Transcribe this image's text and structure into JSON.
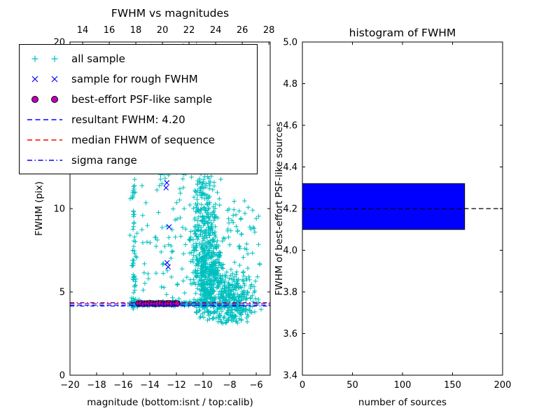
{
  "figure": {
    "background": "#ffffff",
    "text_color": "#000000"
  },
  "chart_data": [
    {
      "type": "scatter",
      "title": "FWHM vs magnitudes",
      "xlabel": "magnitude (bottom:isnt / top:calib)",
      "ylabel": "FWHM (pix)",
      "xlim": [
        -20,
        -4.95
      ],
      "ylim": [
        0,
        20
      ],
      "xticks": [
        -20,
        -18,
        -16,
        -14,
        -12,
        -10,
        -8,
        -6
      ],
      "yticks": [
        0,
        5,
        10,
        15,
        20
      ],
      "top_axis": {
        "lim": [
          13.05,
          28.1
        ],
        "ticks": [
          14,
          16,
          18,
          20,
          22,
          24,
          26,
          28
        ]
      },
      "grid": false,
      "legend_position": "upper-left",
      "legend": [
        {
          "label": "all sample",
          "marker": "plus-pair",
          "color": "#00BFBF"
        },
        {
          "label": "sample for rough FWHM",
          "marker": "x-pair",
          "color": "#0000FF"
        },
        {
          "label": "best-effort PSF-like sample",
          "marker": "circle-pair",
          "color": "#BF00BF",
          "edge": "#000000"
        },
        {
          "label": "resultant FWHM: 4.20",
          "marker": "dashed-line",
          "color": "#0000FF"
        },
        {
          "label": "median FHWM of sequence",
          "marker": "dashed-line",
          "color": "#FF0000"
        },
        {
          "label": "sigma range",
          "marker": "dashdot-line",
          "color": "#0000FF"
        }
      ],
      "series": [
        {
          "name": "all sample",
          "marker": "plus",
          "color": "#00BFBF",
          "seed": 42,
          "clusters": [
            {
              "count": 55,
              "x": {
                "dist": "normal",
                "mu": -15.18,
                "sd": 0.09
              },
              "y": {
                "dist": "uniform",
                "min": 4.4,
                "max": 11.8
              }
            },
            {
              "count": 22,
              "x": {
                "dist": "normal",
                "mu": -15.18,
                "sd": 0.11
              },
              "y": {
                "dist": "normal",
                "mu": 4.32,
                "sd": 0.12
              }
            },
            {
              "count": 120,
              "x": {
                "dist": "uniform",
                "min": -14.7,
                "max": -11.3
              },
              "y": {
                "dist": "uniform",
                "min": 4.6,
                "max": 19.9
              }
            },
            {
              "count": 430,
              "x": {
                "dist": "normal",
                "mu": -9.65,
                "sd": 0.55
              },
              "y": {
                "dist": "normal",
                "mu": 6.0,
                "sd": 1.6
              },
              "ymin": 3.4
            },
            {
              "count": 270,
              "x": {
                "dist": "normal",
                "mu": -9.9,
                "sd": 0.5
              },
              "y": {
                "dist": "normal",
                "mu": 9.5,
                "sd": 2.6
              },
              "ymin": 3.4
            },
            {
              "count": 90,
              "x": {
                "dist": "normal",
                "mu": -10.3,
                "sd": 0.9
              },
              "y": {
                "dist": "normal",
                "mu": 15.5,
                "sd": 3.0
              },
              "ymin": 3.4
            },
            {
              "count": 330,
              "x": {
                "dist": "normal",
                "mu": -7.9,
                "sd": 0.85
              },
              "y": {
                "dist": "normal",
                "mu": 4.35,
                "sd": 0.85
              },
              "ymin": 3.0,
              "xmax": -5.2
            },
            {
              "count": 60,
              "x": {
                "dist": "uniform",
                "min": -8.7,
                "max": -5.7
              },
              "y": {
                "dist": "uniform",
                "min": 5.2,
                "max": 10.5
              }
            },
            {
              "count": 150,
              "x": {
                "dist": "uniform",
                "min": -15.6,
                "max": -9.6
              },
              "y": {
                "dist": "normal",
                "mu": 4.3,
                "sd": 0.09
              }
            },
            {
              "count": 45,
              "x": {
                "dist": "uniform",
                "min": -15.6,
                "max": -6.1
              },
              "y": {
                "dist": "uniform",
                "min": 4.5,
                "max": 19.5
              }
            }
          ]
        },
        {
          "name": "sample for rough FWHM",
          "marker": "x",
          "color": "#0000FF",
          "points": [
            [
              -12.72,
              11.55
            ],
            [
              -12.78,
              11.25
            ],
            [
              -12.55,
              8.9
            ],
            [
              -12.7,
              6.75
            ],
            [
              -12.62,
              6.5
            ],
            [
              -13.6,
              4.32
            ],
            [
              -12.4,
              4.28
            ]
          ]
        },
        {
          "name": "best-effort PSF-like sample",
          "marker": "circle",
          "fill": "#BF00BF",
          "edge": "#000000",
          "points": [
            [
              -14.85,
              4.3
            ],
            [
              -14.64,
              4.31
            ],
            [
              -14.43,
              4.29
            ],
            [
              -14.22,
              4.3
            ],
            [
              -14.01,
              4.32
            ],
            [
              -13.8,
              4.3
            ],
            [
              -13.59,
              4.28
            ],
            [
              -13.38,
              4.3
            ],
            [
              -13.17,
              4.31
            ],
            [
              -12.96,
              4.29
            ],
            [
              -12.75,
              4.3
            ],
            [
              -12.54,
              4.31
            ],
            [
              -12.33,
              4.29
            ],
            [
              -12.12,
              4.3
            ],
            [
              -11.95,
              4.3
            ]
          ]
        }
      ],
      "hlines": [
        {
          "name": "sigma range lower",
          "y": 4.15,
          "style": "dashdot",
          "color": "#0000FF"
        },
        {
          "name": "sigma range upper",
          "y": 4.35,
          "style": "dashdot",
          "color": "#0000FF"
        },
        {
          "name": "median FHWM of sequence",
          "y": 4.3,
          "style": "dashed",
          "color": "#FF0000"
        },
        {
          "name": "resultant FWHM",
          "y": 4.2,
          "style": "dashed",
          "color": "#0000FF"
        }
      ]
    },
    {
      "type": "bar",
      "orientation": "horizontal",
      "title": "histogram of FWHM",
      "xlabel": "number of sources",
      "ylabel": "FWHM of best-effort PSF-like sources",
      "xlim": [
        0,
        200
      ],
      "ylim": [
        3.4,
        5.0
      ],
      "xticks": [
        0,
        50,
        100,
        150,
        200
      ],
      "yticks": [
        3.4,
        3.6,
        3.8,
        4.0,
        4.2,
        4.4,
        4.6,
        4.8,
        5.0
      ],
      "ytick_decimals": 1,
      "bars": [
        {
          "y_from": 4.1,
          "y_to": 4.32,
          "value": 162,
          "fill": "#0000FF",
          "edge": "#000000"
        }
      ],
      "hlines": [
        {
          "name": "resultant FWHM",
          "y": 4.2,
          "style": "dashed",
          "color": "#000000"
        }
      ]
    }
  ]
}
